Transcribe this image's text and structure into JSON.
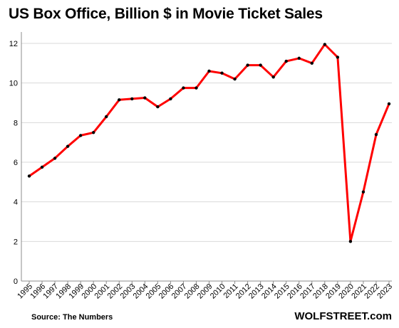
{
  "chart_data": {
    "type": "line",
    "title": "US Box Office, Billion $ in Movie Ticket Sales",
    "source": "Source: The Numbers",
    "brand": "WOLFSTREET.com",
    "xlabel": "",
    "ylabel": "",
    "x": [
      "1995",
      "1996",
      "1997",
      "1998",
      "1999",
      "2000",
      "2001",
      "2002",
      "2003",
      "2004",
      "2005",
      "2006",
      "2007",
      "2008",
      "2009",
      "2010",
      "2011",
      "2012",
      "2013",
      "2014",
      "2015",
      "2016",
      "2017",
      "2018",
      "2019",
      "2020",
      "2021",
      "2022",
      "2023"
    ],
    "series": [
      {
        "values": [
          5.3,
          5.75,
          6.2,
          6.8,
          7.35,
          7.5,
          8.3,
          9.15,
          9.2,
          9.25,
          8.8,
          9.2,
          9.75,
          9.75,
          10.6,
          10.5,
          10.2,
          10.9,
          10.9,
          10.3,
          11.1,
          11.25,
          11.0,
          11.95,
          11.3,
          2.0,
          4.5,
          7.4,
          8.95
        ],
        "color": "#ff0000"
      }
    ],
    "marker_color": "#000000",
    "ylim": [
      0,
      12
    ],
    "yticks": [
      0,
      2,
      4,
      6,
      8,
      10,
      12
    ],
    "grid": true
  }
}
